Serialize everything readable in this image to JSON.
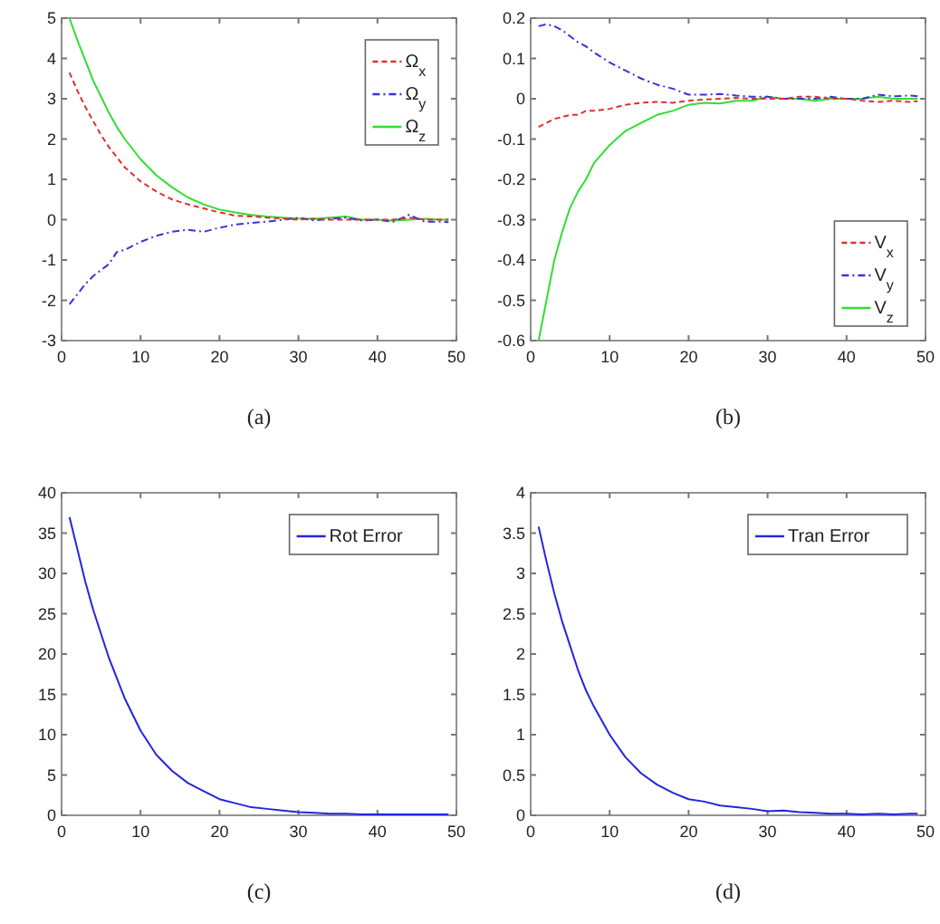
{
  "chart_data": [
    {
      "type": "line",
      "xlabel": "(a)",
      "xlim": [
        0,
        50
      ],
      "xticks": [
        0,
        10,
        20,
        30,
        40,
        50
      ],
      "ylim": [
        -3,
        5
      ],
      "yticks": [
        -3,
        -2,
        -1,
        0,
        1,
        2,
        3,
        4,
        5
      ],
      "legend": "top right",
      "grid": false,
      "x": [
        1,
        2,
        3,
        4,
        5,
        6,
        7,
        8,
        10,
        12,
        14,
        16,
        18,
        20,
        22,
        24,
        26,
        28,
        30,
        32,
        34,
        36,
        38,
        40,
        42,
        44,
        46,
        48,
        49
      ],
      "series": [
        {
          "name": "Ω$_{x}$",
          "color": "#e03030",
          "line_style": "dashed",
          "values": [
            3.65,
            3.2,
            2.8,
            2.45,
            2.1,
            1.8,
            1.55,
            1.3,
            0.95,
            0.7,
            0.5,
            0.38,
            0.28,
            0.18,
            0.1,
            0.08,
            0.05,
            0.03,
            0,
            0.02,
            0,
            0,
            0,
            0,
            0,
            0.05,
            0,
            0,
            0
          ]
        },
        {
          "name": "Ω$_{y}$",
          "color": "#3535dd",
          "line_style": "dotted",
          "values": [
            -2.1,
            -1.85,
            -1.6,
            -1.4,
            -1.25,
            -1.1,
            -0.8,
            -0.75,
            -0.55,
            -0.4,
            -0.3,
            -0.25,
            -0.3,
            -0.2,
            -0.12,
            -0.08,
            -0.05,
            0,
            0.05,
            -0.02,
            0.02,
            0.05,
            -0.02,
            0,
            -0.05,
            0.12,
            -0.05,
            -0.05,
            -0.06
          ]
        },
        {
          "name": "Ω$_{z}$",
          "color": "#33dd33",
          "line_style": "solid",
          "values": [
            5,
            4.45,
            3.95,
            3.45,
            3.05,
            2.65,
            2.3,
            2,
            1.5,
            1.1,
            0.8,
            0.55,
            0.38,
            0.25,
            0.18,
            0.12,
            0.08,
            0.05,
            0.03,
            0.02,
            0.05,
            0.08,
            0,
            0,
            -0.02,
            0,
            0.02,
            0,
            0
          ]
        }
      ]
    },
    {
      "type": "line",
      "xlabel": "(b)",
      "xlim": [
        0,
        50
      ],
      "xticks": [
        0,
        10,
        20,
        30,
        40,
        50
      ],
      "ylim": [
        -0.6,
        0.2
      ],
      "yticks": [
        -0.6,
        -0.5,
        -0.4,
        -0.3,
        -0.2,
        -0.1,
        0,
        0.1,
        0.2
      ],
      "legend": "bottom right",
      "grid": false,
      "x": [
        1,
        2,
        3,
        4,
        5,
        6,
        7,
        8,
        10,
        12,
        14,
        16,
        18,
        20,
        22,
        24,
        26,
        28,
        30,
        32,
        34,
        36,
        38,
        40,
        42,
        44,
        46,
        48,
        49
      ],
      "series": [
        {
          "name": "V$_{x}$",
          "color": "#e03030",
          "line_style": "dashed",
          "values": [
            -0.07,
            -0.06,
            -0.05,
            -0.045,
            -0.04,
            -0.04,
            -0.03,
            -0.03,
            -0.025,
            -0.015,
            -0.01,
            -0.008,
            -0.01,
            -0.005,
            -0.002,
            0,
            0.002,
            0,
            0,
            0,
            0.005,
            0.005,
            0,
            0,
            -0.005,
            -0.008,
            -0.005,
            -0.008,
            -0.006
          ]
        },
        {
          "name": "V$_{y}$",
          "color": "#3535dd",
          "line_style": "dotted",
          "values": [
            0.18,
            0.185,
            0.18,
            0.17,
            0.155,
            0.14,
            0.13,
            0.115,
            0.09,
            0.07,
            0.05,
            0.035,
            0.025,
            0.01,
            0.01,
            0.012,
            0.008,
            0.005,
            0.005,
            0,
            0,
            0,
            0.005,
            0,
            0,
            0.01,
            0.006,
            0.008,
            0.006
          ]
        },
        {
          "name": "V$_{z}$",
          "color": "#33dd33",
          "line_style": "solid",
          "values": [
            -0.6,
            -0.5,
            -0.4,
            -0.33,
            -0.27,
            -0.23,
            -0.2,
            -0.16,
            -0.115,
            -0.08,
            -0.06,
            -0.04,
            -0.03,
            -0.015,
            -0.01,
            -0.012,
            -0.005,
            -0.005,
            0.005,
            0,
            0,
            -0.005,
            0,
            0,
            0,
            0.005,
            0,
            0,
            0
          ]
        }
      ]
    },
    {
      "type": "line",
      "xlabel": "(c)",
      "xlim": [
        0,
        50
      ],
      "xticks": [
        0,
        10,
        20,
        30,
        40,
        50
      ],
      "ylim": [
        0,
        40
      ],
      "yticks": [
        0,
        5,
        10,
        15,
        20,
        25,
        30,
        35,
        40
      ],
      "legend": "top right",
      "grid": false,
      "x": [
        1,
        2,
        3,
        4,
        5,
        6,
        7,
        8,
        10,
        12,
        14,
        16,
        18,
        20,
        22,
        24,
        26,
        28,
        30,
        32,
        34,
        36,
        38,
        40,
        42,
        44,
        46,
        48,
        49
      ],
      "series": [
        {
          "name": "Rot Error",
          "color": "#2525dd",
          "line_style": "solid",
          "values": [
            37,
            33,
            29,
            25.5,
            22.5,
            19.5,
            17,
            14.5,
            10.5,
            7.5,
            5.5,
            4,
            3,
            2,
            1.5,
            1,
            0.8,
            0.6,
            0.4,
            0.3,
            0.2,
            0.2,
            0.1,
            0.1,
            0.1,
            0.1,
            0.1,
            0.1,
            0.1
          ]
        }
      ]
    },
    {
      "type": "line",
      "xlabel": "(d)",
      "xlim": [
        0,
        50
      ],
      "xticks": [
        0,
        10,
        20,
        30,
        40,
        50
      ],
      "ylim": [
        0,
        4
      ],
      "yticks": [
        0,
        0.5,
        1,
        1.5,
        2,
        2.5,
        3,
        3.5,
        4
      ],
      "legend": "top right",
      "grid": false,
      "x": [
        1,
        2,
        3,
        4,
        5,
        6,
        7,
        8,
        10,
        12,
        14,
        16,
        18,
        20,
        22,
        24,
        26,
        28,
        30,
        32,
        34,
        36,
        38,
        40,
        42,
        44,
        46,
        48,
        49
      ],
      "series": [
        {
          "name": "Tran Error",
          "color": "#2525dd",
          "line_style": "solid",
          "values": [
            3.58,
            3.15,
            2.75,
            2.4,
            2.1,
            1.8,
            1.55,
            1.35,
            1,
            0.72,
            0.52,
            0.38,
            0.28,
            0.2,
            0.17,
            0.12,
            0.1,
            0.08,
            0.05,
            0.06,
            0.04,
            0.03,
            0.02,
            0.02,
            0.01,
            0.02,
            0.01,
            0.02,
            0.02
          ]
        }
      ]
    }
  ]
}
